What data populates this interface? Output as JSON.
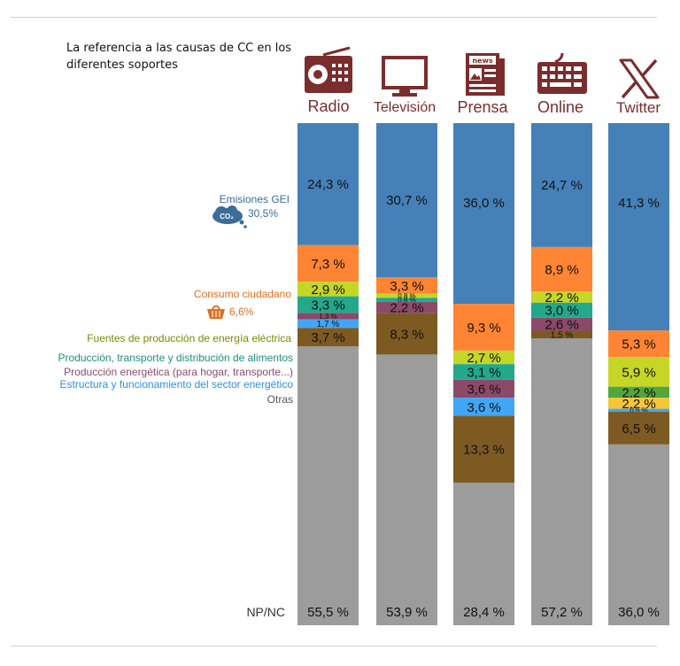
{
  "title": "La referencia a las causas de CC en los diferentes soportes",
  "colors": {
    "icon": "#7b2d2d",
    "emisiones_legend": "#3b6d9a",
    "consumo_legend": "#e0701f"
  },
  "legend_values": {
    "emisiones": "30,5%",
    "consumo": "6,6%"
  },
  "chart_data": {
    "type": "bar",
    "stacked": true,
    "orientation": "vertical",
    "stack_order": "top-to-bottom",
    "ylim": [
      0,
      100
    ],
    "categories": [
      "Radio",
      "Televisión",
      "Prensa",
      "Online",
      "Twitter"
    ],
    "category_icons": [
      "radio-icon",
      "television-icon",
      "newspaper-icon",
      "keyboard-icon",
      "x-logo-icon"
    ],
    "series": [
      {
        "name": "Emisiones GEI",
        "color": "#4581b8",
        "values": [
          24.3,
          30.7,
          36.0,
          24.7,
          41.3
        ],
        "labels": [
          "24,3 %",
          "30,7 %",
          "36,0 %",
          "24,7 %",
          "41,3 %"
        ]
      },
      {
        "name": "Consumo ciudadano",
        "color": "#ff8433",
        "values": [
          7.3,
          3.3,
          9.3,
          8.9,
          5.3
        ],
        "labels": [
          "7,3 %",
          "3,3 %",
          "9,3 %",
          "8,9 %",
          "5,3 %"
        ]
      },
      {
        "name": "Fuentes de producción de energía eléctrica",
        "color": "#c5d626",
        "values": [
          2.9,
          0.8,
          2.7,
          2.2,
          5.9
        ],
        "labels": [
          "2,9 %",
          "0,8 %",
          "2,7 %",
          "2,2 %",
          "5,9 %"
        ]
      },
      {
        "name": "Producción, transporte y distribución de alimentos",
        "color": "#23a88c",
        "values": [
          3.3,
          0.8,
          3.1,
          3.0,
          0
        ],
        "labels": [
          "3,3 %",
          "0,8 %",
          "3,1 %",
          "3,0 %",
          ""
        ]
      },
      {
        "name": "Producción energética (para hogar, transporte...)",
        "color": "#8b4a6a",
        "values": [
          1.3,
          2.2,
          3.6,
          2.6,
          0
        ],
        "labels": [
          "1,3 %",
          "2,2 %",
          "3,6 %",
          "2,6 %",
          ""
        ]
      },
      {
        "name": "Estructura y funcionamiento del sector energético",
        "color": "#42a5f5",
        "values": [
          1.7,
          0,
          3.6,
          0,
          0.6
        ],
        "labels": [
          "1,7 %",
          "",
          "3,6 %",
          "",
          "0,6 %"
        ]
      },
      {
        "name": "Otras",
        "color": "#7d5a22",
        "values": [
          3.7,
          8.3,
          13.3,
          1.5,
          6.5
        ],
        "labels": [
          "3,7 %",
          "8,3 %",
          "13,3 %",
          "1,5 %",
          "6,5 %"
        ]
      },
      {
        "name": "NP/NC",
        "color": "#9c9c9c",
        "values": [
          55.5,
          53.9,
          28.4,
          57.2,
          36.0
        ],
        "labels": [
          "55,5 %",
          "53,9 %",
          "28,4 %",
          "57,2 %",
          "36,0 %"
        ]
      }
    ],
    "twitter_extra_segments": [
      {
        "after_series": "Fuentes de producción de energía eléctrica",
        "color": "#52a63c",
        "value": 2.2,
        "label": "2,2 %"
      },
      {
        "after_series": "Fuentes de producción de energía eléctrica",
        "color": "#f5c637",
        "value": 2.2,
        "label": "2,2 %"
      }
    ]
  }
}
